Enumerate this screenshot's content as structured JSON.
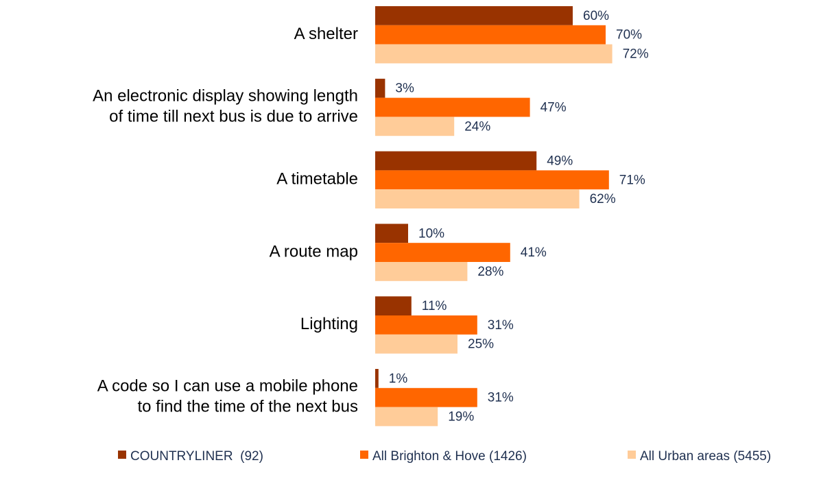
{
  "chart_data": {
    "type": "hbar",
    "categories": [
      "A shelter",
      "An electronic display showing length\nof time till next bus is due to arrive",
      "A timetable",
      "A route map",
      "Lighting",
      "A code so I can use a mobile phone\nto find the time of the next bus"
    ],
    "series": [
      {
        "name": "COUNTRYLINER  (92)",
        "color": "#993300",
        "values": [
          60,
          3,
          49,
          10,
          11,
          1
        ],
        "value_labels": [
          "60%",
          "3%",
          "49%",
          "10%",
          "11%",
          "1%"
        ]
      },
      {
        "name": "All Brighton & Hove (1426)",
        "color": "#ff6600",
        "values": [
          70,
          47,
          71,
          41,
          31,
          31
        ],
        "value_labels": [
          "70%",
          "47%",
          "71%",
          "41%",
          "31%",
          "31%"
        ]
      },
      {
        "name": "All Urban areas (5455)",
        "color": "#ffcc99",
        "values": [
          72,
          24,
          62,
          28,
          25,
          19
        ],
        "value_labels": [
          "72%",
          "24%",
          "62%",
          "28%",
          "25%",
          "19%"
        ]
      }
    ],
    "legend": "bottom"
  }
}
